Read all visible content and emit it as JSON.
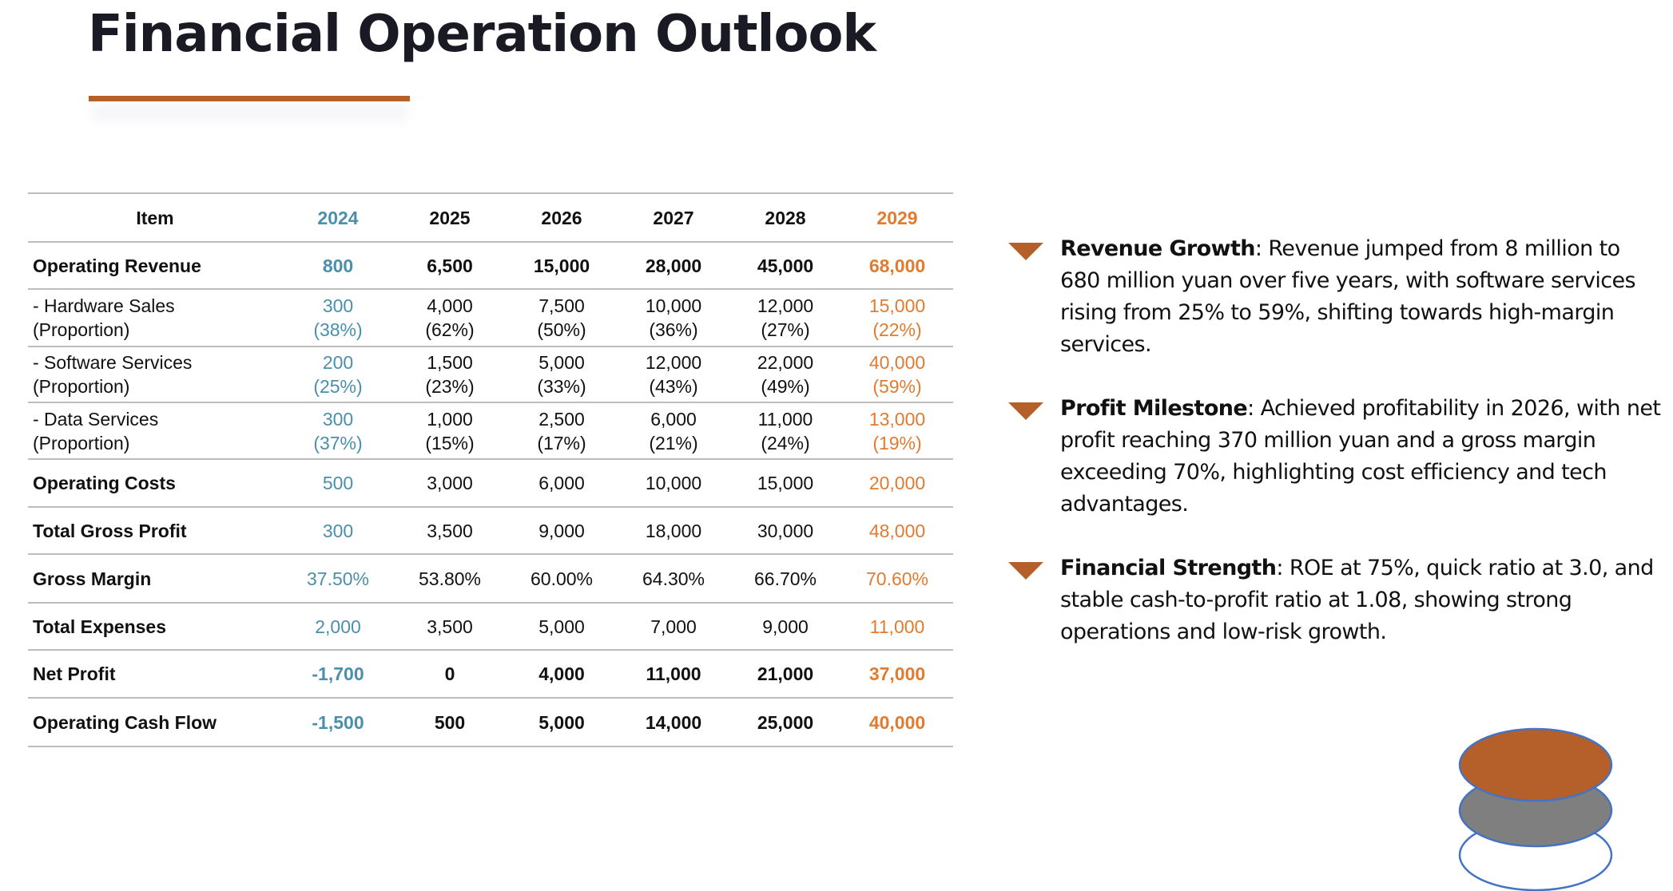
{
  "title": "Financial Operation Outlook",
  "colors": {
    "accent": "#b5602b",
    "year_2024": "#4a8fab",
    "year_2029": "#e07b30",
    "gray": "#7f7f7f",
    "ellipse_outline": "#4472c4"
  },
  "table": {
    "headers": [
      "Item",
      "2024",
      "2025",
      "2026",
      "2027",
      "2028",
      "2029"
    ],
    "rows": [
      {
        "label": [
          "Operating Revenue"
        ],
        "bold": true,
        "values": [
          [
            "800"
          ],
          [
            "6,500"
          ],
          [
            "15,000"
          ],
          [
            "28,000"
          ],
          [
            "45,000"
          ],
          [
            "68,000"
          ]
        ]
      },
      {
        "label": [
          "- Hardware Sales",
          "(Proportion)"
        ],
        "bold": false,
        "values": [
          [
            "300",
            "(38%)"
          ],
          [
            "4,000",
            "(62%)"
          ],
          [
            "7,500",
            "(50%)"
          ],
          [
            "10,000",
            "(36%)"
          ],
          [
            "12,000",
            "(27%)"
          ],
          [
            "15,000",
            "(22%)"
          ]
        ]
      },
      {
        "label": [
          "- Software Services",
          "(Proportion)"
        ],
        "bold": false,
        "values": [
          [
            "200",
            "(25%)"
          ],
          [
            "1,500",
            "(23%)"
          ],
          [
            "5,000",
            "(33%)"
          ],
          [
            "12,000",
            "(43%)"
          ],
          [
            "22,000",
            "(49%)"
          ],
          [
            "40,000",
            "(59%)"
          ]
        ]
      },
      {
        "label": [
          "- Data Services",
          "(Proportion)"
        ],
        "bold": false,
        "values": [
          [
            "300",
            "(37%)"
          ],
          [
            "1,000",
            "(15%)"
          ],
          [
            "2,500",
            "(17%)"
          ],
          [
            "6,000",
            "(21%)"
          ],
          [
            "11,000",
            "(24%)"
          ],
          [
            "13,000",
            "(19%)"
          ]
        ]
      },
      {
        "label": [
          "Operating Costs"
        ],
        "bold": false,
        "labelBold": true,
        "values": [
          [
            "500"
          ],
          [
            "3,000"
          ],
          [
            "6,000"
          ],
          [
            "10,000"
          ],
          [
            "15,000"
          ],
          [
            "20,000"
          ]
        ]
      },
      {
        "label": [
          "Total Gross Profit"
        ],
        "bold": false,
        "labelBold": true,
        "values": [
          [
            "300"
          ],
          [
            "3,500"
          ],
          [
            "9,000"
          ],
          [
            "18,000"
          ],
          [
            "30,000"
          ],
          [
            "48,000"
          ]
        ]
      },
      {
        "label": [
          "Gross Margin"
        ],
        "bold": false,
        "labelBold": true,
        "values": [
          [
            "37.50%"
          ],
          [
            "53.80%"
          ],
          [
            "60.00%"
          ],
          [
            "64.30%"
          ],
          [
            "66.70%"
          ],
          [
            "70.60%"
          ]
        ]
      },
      {
        "label": [
          "Total Expenses"
        ],
        "bold": false,
        "labelBold": true,
        "values": [
          [
            "2,000"
          ],
          [
            "3,500"
          ],
          [
            "5,000"
          ],
          [
            "7,000"
          ],
          [
            "9,000"
          ],
          [
            "11,000"
          ]
        ]
      },
      {
        "label": [
          "Net Profit"
        ],
        "bold": true,
        "values": [
          [
            "-1,700"
          ],
          [
            "0"
          ],
          [
            "4,000"
          ],
          [
            "11,000"
          ],
          [
            "21,000"
          ],
          [
            "37,000"
          ]
        ]
      },
      {
        "label": [
          "Operating Cash Flow"
        ],
        "bold": true,
        "values": [
          [
            "-1,500"
          ],
          [
            "500"
          ],
          [
            "5,000"
          ],
          [
            "14,000"
          ],
          [
            "25,000"
          ],
          [
            "40,000"
          ]
        ]
      }
    ]
  },
  "bullets": [
    {
      "icon": "triangle-down-icon",
      "heading": "Revenue Growth",
      "text": ": Revenue jumped from 8 million to 680 million yuan over five years, with software services rising from 25% to 59%, shifting towards high-margin services."
    },
    {
      "icon": "triangle-down-icon",
      "heading": "Profit Milestone",
      "text": ": Achieved profitability in 2026, with net profit reaching 370 million yuan and a gross margin exceeding 70%, highlighting cost efficiency and tech advantages."
    },
    {
      "icon": "triangle-down-icon",
      "heading": "Financial Strength",
      "text": ": ROE at 75%, quick ratio at 3.0, and stable cash-to-profit ratio at 1.08, showing strong operations and low-risk growth."
    }
  ]
}
